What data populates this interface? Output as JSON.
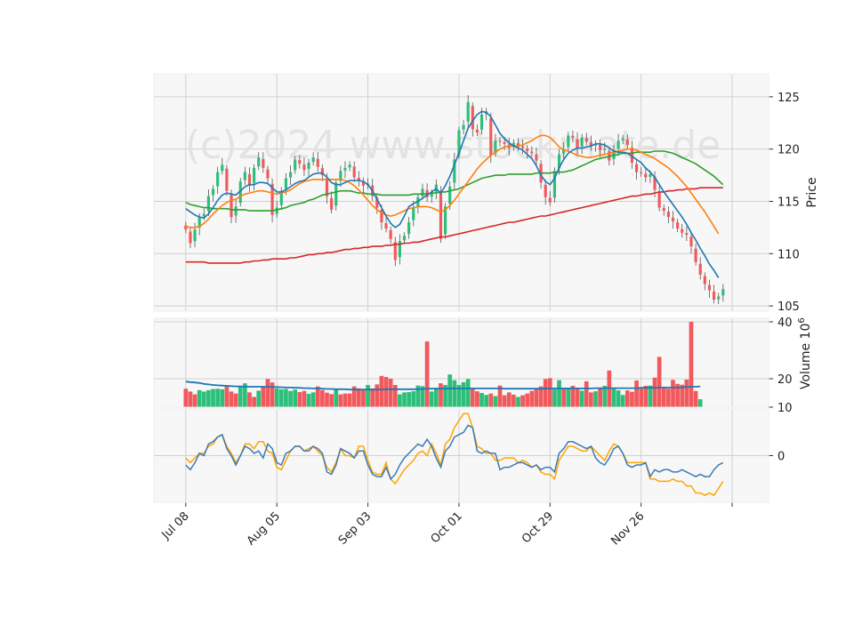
{
  "chart_data": {
    "type": "candlestick",
    "watermark": "(c)2024 www.stockmate.de",
    "colors": {
      "up": "#2dbf7a",
      "down": "#f2595c",
      "ma_fast": "#1f77b4",
      "ma_mid": "#ff7f0e",
      "ma_slow": "#2ca02c",
      "ma_long": "#d62728",
      "vol_ma": "#1f77b4",
      "osc_a": "#3b7bb5",
      "osc_b": "#ffa500",
      "panel_bg": "#f7f7f7",
      "grid": "#d0d0d0"
    },
    "x_ticks": [
      {
        "i": 0,
        "label": "Jul 08"
      },
      {
        "i": 20,
        "label": "Aug 05"
      },
      {
        "i": 40,
        "label": "Sep 03"
      },
      {
        "i": 60,
        "label": "Oct 01"
      },
      {
        "i": 80,
        "label": "Oct 29"
      },
      {
        "i": 100,
        "label": "Nov 26"
      },
      {
        "i": 120,
        "label": ""
      }
    ],
    "x_range": [
      -7,
      128
    ],
    "price_panel": {
      "ylabel": "Price",
      "yticks": [
        105,
        110,
        115,
        120,
        125
      ],
      "ylim": [
        104.5,
        127.2
      ],
      "close": [
        112.3,
        111.0,
        112.3,
        113.5,
        113.8,
        115.5,
        116.2,
        117.8,
        118.5,
        116.0,
        113.5,
        114.5,
        116.9,
        117.8,
        116.5,
        118.2,
        119.2,
        118.2,
        117.2,
        113.7,
        114.4,
        116.0,
        117.2,
        117.8,
        119.0,
        118.6,
        118.0,
        118.7,
        119.2,
        118.3,
        117.5,
        115.5,
        114.2,
        116.8,
        117.9,
        118.2,
        118.5,
        117.3,
        117.0,
        116.5,
        116.7,
        115.5,
        114.4,
        113.0,
        112.4,
        111.4,
        109.4,
        111.2,
        111.7,
        113.0,
        114.4,
        115.4,
        116.2,
        115.4,
        115.8,
        116.6,
        111.4,
        114.5,
        116.4,
        119.0,
        121.8,
        122.3,
        124.5,
        121.9,
        121.6,
        123.3,
        123.6,
        119.4,
        120.8,
        120.7,
        120.5,
        120.1,
        120.6,
        120.3,
        120.1,
        119.8,
        119.6,
        118.9,
        116.8,
        115.4,
        114.9,
        117.9,
        119.5,
        120.0,
        121.3,
        121.1,
        120.1,
        121.1,
        120.7,
        120.3,
        120.5,
        119.9,
        120.0,
        118.9,
        119.9,
        120.8,
        121.0,
        120.4,
        118.7,
        117.8,
        117.7,
        117.3,
        117.6,
        116.1,
        114.4,
        114.1,
        113.5,
        113.1,
        112.4,
        112.0,
        111.8,
        110.7,
        109.2,
        108.0,
        107.1,
        106.5,
        105.6,
        105.9,
        106.6
      ],
      "ma_fast": [
        114.3,
        114.0,
        113.7,
        113.5,
        113.4,
        113.8,
        114.4,
        115.1,
        115.6,
        115.8,
        115.7,
        115.6,
        116.0,
        116.4,
        116.6,
        116.6,
        116.8,
        116.8,
        116.7,
        116.3,
        115.9,
        115.9,
        116.1,
        116.4,
        116.7,
        116.9,
        117.0,
        117.3,
        117.6,
        117.7,
        117.7,
        117.3,
        116.8,
        116.6,
        116.6,
        116.8,
        117.0,
        117.0,
        117.0,
        116.9,
        116.6,
        116.0,
        115.2,
        114.4,
        113.6,
        112.9,
        112.5,
        112.8,
        113.6,
        114.5,
        114.8,
        115.0,
        115.3,
        115.6,
        115.9,
        116.2,
        115.8,
        116.5,
        117.4,
        118.5,
        119.6,
        120.8,
        122.0,
        122.7,
        123.3,
        123.6,
        123.5,
        123.1,
        122.3,
        121.5,
        121.0,
        120.6,
        120.3,
        120.1,
        119.9,
        119.5,
        119.1,
        118.4,
        117.5,
        116.9,
        116.6,
        117.2,
        118.2,
        119.0,
        119.6,
        119.9,
        120.1,
        120.1,
        120.2,
        120.3,
        120.5,
        120.5,
        120.4,
        120.1,
        119.8,
        119.7,
        119.7,
        119.6,
        119.3,
        119.0,
        118.7,
        118.2,
        117.8,
        117.3,
        116.6,
        115.9,
        115.3,
        114.7,
        114.1,
        113.5,
        112.8,
        112.0,
        111.3,
        110.5,
        109.8,
        109.0,
        108.4,
        107.7
      ],
      "ma_mid": [
        112.6,
        112.5,
        112.5,
        112.6,
        112.9,
        113.3,
        113.8,
        114.2,
        114.6,
        114.9,
        115.1,
        115.2,
        115.5,
        115.7,
        115.8,
        115.9,
        116.0,
        116.0,
        115.9,
        115.8,
        115.7,
        115.8,
        115.9,
        116.1,
        116.4,
        116.7,
        116.9,
        117.0,
        117.1,
        117.1,
        117.1,
        117.1,
        117.1,
        117.1,
        117.1,
        117.0,
        116.8,
        116.5,
        116.1,
        115.6,
        115.1,
        114.6,
        114.2,
        113.9,
        113.7,
        113.6,
        113.7,
        113.9,
        114.1,
        114.3,
        114.4,
        114.5,
        114.5,
        114.5,
        114.4,
        114.2,
        114.0,
        114.2,
        114.6,
        115.1,
        115.7,
        116.3,
        116.9,
        117.5,
        118.1,
        118.6,
        119.0,
        119.4,
        119.7,
        120.0,
        120.2,
        120.3,
        120.3,
        120.3,
        120.4,
        120.6,
        120.8,
        121.1,
        121.3,
        121.3,
        121.1,
        120.7,
        120.2,
        119.9,
        119.8,
        119.6,
        119.4,
        119.3,
        119.2,
        119.2,
        119.3,
        119.4,
        119.5,
        119.6,
        119.7,
        119.8,
        119.9,
        120.0,
        120.0,
        119.9,
        119.7,
        119.5,
        119.3,
        119.1,
        118.8,
        118.5,
        118.2,
        117.8,
        117.4,
        116.9,
        116.4,
        115.8,
        115.2,
        114.6,
        114.0,
        113.3,
        112.6,
        111.9
      ],
      "ma_slow": [
        114.9,
        114.7,
        114.6,
        114.5,
        114.4,
        114.4,
        114.3,
        114.3,
        114.3,
        114.3,
        114.2,
        114.2,
        114.2,
        114.2,
        114.1,
        114.1,
        114.1,
        114.1,
        114.1,
        114.1,
        114.2,
        114.3,
        114.4,
        114.6,
        114.7,
        114.8,
        114.9,
        115.1,
        115.2,
        115.4,
        115.6,
        115.7,
        115.8,
        115.9,
        116.0,
        116.0,
        116.0,
        115.9,
        115.8,
        115.8,
        115.7,
        115.7,
        115.7,
        115.6,
        115.6,
        115.6,
        115.6,
        115.6,
        115.6,
        115.6,
        115.7,
        115.7,
        115.7,
        115.7,
        115.8,
        115.8,
        115.9,
        115.9,
        116.0,
        116.1,
        116.2,
        116.4,
        116.6,
        116.8,
        117.0,
        117.2,
        117.3,
        117.4,
        117.5,
        117.5,
        117.5,
        117.6,
        117.6,
        117.6,
        117.6,
        117.6,
        117.6,
        117.7,
        117.7,
        117.7,
        117.7,
        117.8,
        117.8,
        117.8,
        117.9,
        118.0,
        118.2,
        118.4,
        118.6,
        118.8,
        119.0,
        119.1,
        119.2,
        119.3,
        119.4,
        119.5,
        119.6,
        119.6,
        119.6,
        119.7,
        119.7,
        119.7,
        119.7,
        119.8,
        119.8,
        119.8,
        119.7,
        119.6,
        119.4,
        119.2,
        119.0,
        118.8,
        118.6,
        118.3,
        118.0,
        117.7,
        117.4,
        117.0,
        116.6
      ],
      "ma_long": [
        109.2,
        109.2,
        109.2,
        109.2,
        109.2,
        109.1,
        109.1,
        109.1,
        109.1,
        109.1,
        109.1,
        109.1,
        109.1,
        109.2,
        109.2,
        109.3,
        109.3,
        109.4,
        109.4,
        109.5,
        109.5,
        109.5,
        109.5,
        109.6,
        109.6,
        109.7,
        109.8,
        109.9,
        109.9,
        110.0,
        110.0,
        110.1,
        110.1,
        110.2,
        110.3,
        110.4,
        110.4,
        110.5,
        110.5,
        110.6,
        110.6,
        110.7,
        110.7,
        110.7,
        110.8,
        110.8,
        110.9,
        110.9,
        111.0,
        111.0,
        111.1,
        111.1,
        111.2,
        111.3,
        111.4,
        111.5,
        111.6,
        111.6,
        111.7,
        111.8,
        111.9,
        112.0,
        112.1,
        112.2,
        112.3,
        112.4,
        112.5,
        112.6,
        112.7,
        112.8,
        112.9,
        113.0,
        113.0,
        113.1,
        113.2,
        113.3,
        113.4,
        113.5,
        113.6,
        113.6,
        113.7,
        113.8,
        113.9,
        114.0,
        114.1,
        114.2,
        114.3,
        114.4,
        114.5,
        114.6,
        114.7,
        114.8,
        114.9,
        115.0,
        115.1,
        115.2,
        115.3,
        115.4,
        115.5,
        115.5,
        115.6,
        115.7,
        115.7,
        115.8,
        115.9,
        115.9,
        116.0,
        116.0,
        116.1,
        116.1,
        116.2,
        116.2,
        116.2,
        116.3,
        116.3,
        116.3,
        116.3,
        116.3,
        116.3
      ]
    },
    "volume_panel": {
      "ylabel": "Volume",
      "unit": "10^6",
      "yticks": [
        10,
        20,
        40
      ],
      "volume": [
        16.5,
        15.5,
        14.5,
        16.0,
        15.5,
        16.0,
        16.4,
        16.5,
        16.3,
        17.6,
        15.5,
        14.8,
        17.2,
        18.4,
        15.2,
        13.6,
        15.8,
        17.0,
        19.9,
        18.7,
        16.6,
        16.3,
        16.4,
        15.7,
        16.2,
        15.3,
        15.7,
        14.7,
        15.2,
        17.3,
        16.0,
        15.1,
        14.6,
        16.3,
        14.5,
        14.8,
        14.8,
        17.3,
        16.6,
        16.4,
        17.8,
        16.6,
        18.0,
        21.0,
        20.6,
        20.0,
        17.8,
        14.5,
        15.2,
        15.3,
        15.6,
        17.6,
        17.4,
        33.1,
        15.5,
        16.8,
        18.4,
        17.8,
        21.5,
        19.5,
        17.8,
        18.8,
        19.9,
        16.6,
        15.6,
        15.0,
        14.3,
        14.8,
        13.9,
        17.6,
        14.2,
        15.2,
        14.4,
        13.6,
        14.2,
        14.8,
        15.7,
        16.4,
        17.3,
        19.9,
        20.2,
        16.3,
        19.5,
        16.6,
        16.6,
        17.5,
        16.7,
        15.8,
        19.1,
        15.2,
        15.6,
        16.5,
        17.5,
        22.9,
        16.7,
        15.9,
        14.3,
        15.9,
        15.4,
        19.4,
        16.9,
        17.5,
        17.6,
        20.4,
        27.7,
        16.7,
        16.5,
        19.6,
        18.2,
        17.9,
        19.7,
        40.0,
        15.7,
        12.8
      ],
      "volume_up": [
        false,
        false,
        false,
        true,
        true,
        true,
        true,
        true,
        true,
        false,
        false,
        false,
        true,
        true,
        false,
        false,
        true,
        false,
        false,
        false,
        true,
        true,
        true,
        true,
        true,
        false,
        false,
        true,
        true,
        false,
        false,
        false,
        false,
        true,
        false,
        false,
        false,
        false,
        false,
        false,
        true,
        false,
        false,
        false,
        false,
        false,
        false,
        true,
        true,
        true,
        true,
        true,
        true,
        false,
        true,
        true,
        false,
        true,
        true,
        true,
        true,
        true,
        true,
        false,
        false,
        true,
        true,
        false,
        true,
        false,
        false,
        false,
        false,
        true,
        false,
        false,
        false,
        false,
        false,
        false,
        false,
        true,
        true,
        false,
        true,
        false,
        false,
        true,
        false,
        false,
        true,
        false,
        true,
        false,
        true,
        true,
        true,
        false,
        false,
        false,
        false,
        false,
        true,
        false,
        false,
        false,
        false,
        false,
        false,
        false,
        false,
        false,
        false,
        true,
        true,
        true
      ],
      "vol_ma": [
        19.0,
        18.8,
        18.7,
        18.5,
        18.2,
        18.0,
        17.8,
        17.7,
        17.6,
        17.5,
        17.4,
        17.3,
        17.3,
        17.2,
        17.2,
        17.2,
        17.2,
        17.2,
        17.2,
        17.1,
        17.1,
        17.0,
        16.9,
        16.9,
        16.8,
        16.8,
        16.7,
        16.7,
        16.6,
        16.6,
        16.5,
        16.4,
        16.4,
        16.3,
        16.3,
        16.3,
        16.2,
        16.2,
        16.2,
        16.2,
        16.2,
        16.2,
        16.2,
        16.2,
        16.3,
        16.3,
        16.3,
        16.3,
        16.3,
        16.3,
        16.3,
        16.3,
        16.4,
        16.5,
        16.5,
        16.5,
        16.5,
        16.5,
        16.6,
        16.6,
        16.6,
        16.6,
        16.6,
        16.6,
        16.6,
        16.6,
        16.6,
        16.6,
        16.6,
        16.6,
        16.5,
        16.5,
        16.5,
        16.5,
        16.5,
        16.5,
        16.5,
        16.5,
        16.5,
        16.5,
        16.6,
        16.6,
        16.6,
        16.6,
        16.6,
        16.6,
        16.6,
        16.6,
        16.6,
        16.6,
        16.7,
        16.7,
        16.7,
        16.7,
        16.7,
        16.7,
        16.7,
        16.7,
        16.7,
        16.7,
        16.8,
        16.8,
        16.8,
        16.8,
        16.9,
        16.9,
        16.9,
        16.9,
        16.9,
        17.0,
        17.1,
        17.2,
        17.2,
        17.3
      ]
    },
    "osc_panel": {
      "yticks": [
        0
      ],
      "ylim": [
        -10,
        10
      ],
      "osc_a": [
        -2.0,
        -3.0,
        -1.5,
        0.5,
        0.0,
        2.5,
        3.0,
        4.0,
        4.5,
        1.5,
        0.0,
        -2.0,
        0.0,
        2.0,
        1.5,
        0.5,
        1.0,
        -0.5,
        2.5,
        1.5,
        -1.5,
        -2.0,
        0.5,
        1.0,
        2.0,
        2.0,
        1.0,
        1.0,
        2.0,
        1.5,
        0.5,
        -3.5,
        -4.0,
        -2.0,
        1.5,
        1.0,
        0.5,
        -0.5,
        1.0,
        1.0,
        -2.0,
        -4.0,
        -4.5,
        -4.5,
        -2.5,
        -5.0,
        -4.0,
        -2.0,
        -0.5,
        0.5,
        1.5,
        2.5,
        2.0,
        3.5,
        2.0,
        -0.5,
        -2.5,
        1.0,
        2.0,
        4.0,
        4.5,
        5.0,
        6.5,
        6.0,
        1.0,
        0.5,
        1.0,
        0.5,
        0.5,
        -3.0,
        -2.5,
        -2.5,
        -2.0,
        -1.5,
        -1.5,
        -2.0,
        -2.5,
        -2.0,
        -3.0,
        -2.5,
        -2.5,
        -3.5,
        0.5,
        1.5,
        3.0,
        3.0,
        2.5,
        2.0,
        1.5,
        2.0,
        -0.5,
        -1.5,
        -2.0,
        -0.5,
        1.5,
        2.0,
        0.5,
        -2.0,
        -2.5,
        -2.0,
        -2.0,
        -1.5,
        -4.5,
        -3.0,
        -3.5,
        -3.0,
        -3.0,
        -3.5,
        -3.5,
        -3.0,
        -3.5,
        -4.0,
        -4.5,
        -4.0,
        -4.5,
        -4.5,
        -3.0,
        -2.0,
        -1.5
      ],
      "osc_b": [
        -0.5,
        -1.5,
        -0.5,
        0.5,
        0.5,
        2.0,
        2.5,
        4.0,
        4.5,
        2.0,
        0.5,
        -1.5,
        0.0,
        2.5,
        2.5,
        1.5,
        3.0,
        3.0,
        1.0,
        0.5,
        -2.5,
        -3.0,
        -1.0,
        1.0,
        2.0,
        2.0,
        1.0,
        1.5,
        2.0,
        1.0,
        0.0,
        -2.5,
        -3.5,
        -1.5,
        1.5,
        0.0,
        0.0,
        -0.5,
        2.0,
        2.0,
        -1.0,
        -3.5,
        -4.0,
        -4.0,
        -1.5,
        -5.0,
        -6.0,
        -4.5,
        -3.0,
        -2.0,
        -1.0,
        0.5,
        1.0,
        0.0,
        2.5,
        0.5,
        -2.0,
        2.5,
        3.5,
        6.0,
        7.5,
        9.0,
        9.0,
        6.0,
        2.0,
        1.5,
        0.5,
        0.5,
        -1.0,
        -1.0,
        -0.5,
        -0.5,
        -0.5,
        -1.5,
        -1.0,
        -1.5,
        -2.5,
        -2.0,
        -3.5,
        -4.0,
        -4.0,
        -5.0,
        -1.0,
        0.5,
        2.0,
        2.0,
        1.5,
        1.0,
        1.0,
        2.0,
        1.0,
        0.0,
        -1.0,
        1.0,
        2.5,
        2.0,
        0.5,
        -1.5,
        -1.5,
        -1.5,
        -1.5,
        -1.5,
        -5.0,
        -5.0,
        -5.5,
        -5.5,
        -5.5,
        -5.0,
        -5.5,
        -5.5,
        -6.5,
        -6.5,
        -8.0,
        -8.0,
        -8.5,
        -8.0,
        -8.5,
        -7.0,
        -5.5
      ]
    }
  }
}
